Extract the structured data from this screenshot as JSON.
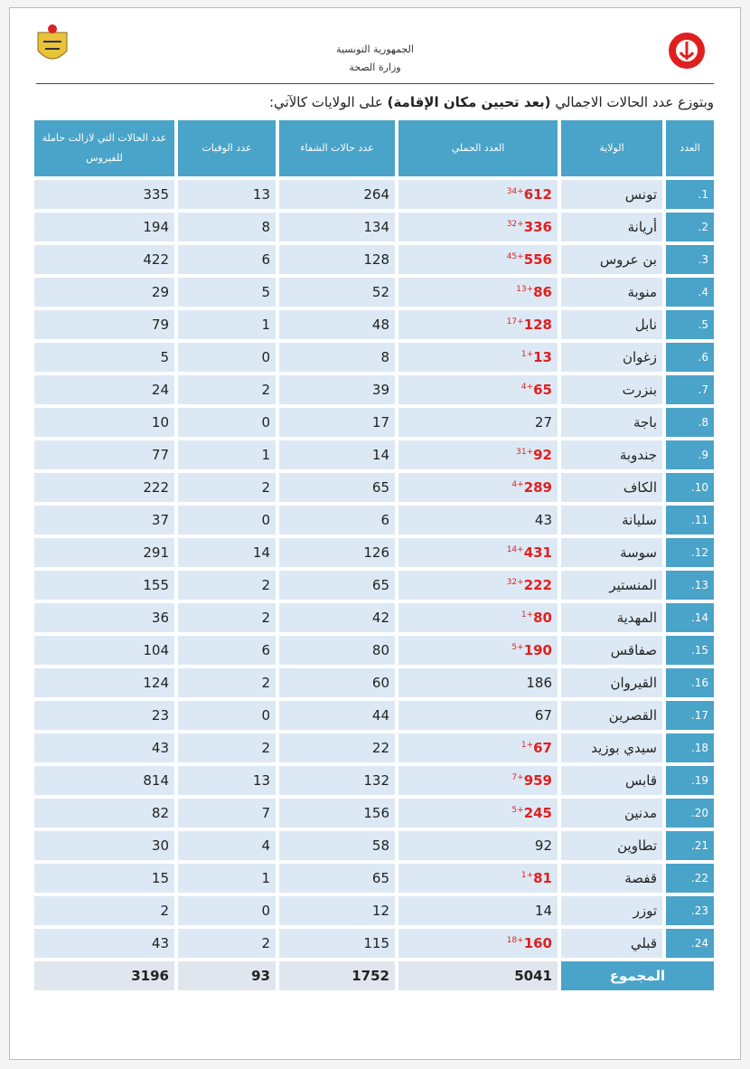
{
  "header": {
    "line1": "الجمهورية التونسية",
    "line2": "وزارة الصحة"
  },
  "intro": {
    "before": "وبتوزع عدد الحالات الاجمالي",
    "bold": "(بعد تحيين مكان الإقامة)",
    "after": "على الولايات كالآتي:"
  },
  "table": {
    "columns": [
      "العدد",
      "الولاية",
      "العدد الجملي",
      "عدد حالات الشفاء",
      "عدد الوفيات",
      "عدد الحالات التي لازالت حاملة للفيروس"
    ],
    "rows": [
      {
        "index": "1.",
        "name": "تونس",
        "total": 612,
        "new": "34+",
        "recovered": 264,
        "deaths": 13,
        "active": 335
      },
      {
        "index": "2.",
        "name": "أريانة",
        "total": 336,
        "new": "32+",
        "recovered": 134,
        "deaths": 8,
        "active": 194
      },
      {
        "index": "3.",
        "name": "بن عروس",
        "total": 556,
        "new": "45+",
        "recovered": 128,
        "deaths": 6,
        "active": 422
      },
      {
        "index": "4.",
        "name": "منوبة",
        "total": 86,
        "new": "13+",
        "recovered": 52,
        "deaths": 5,
        "active": 29
      },
      {
        "index": "5.",
        "name": "نابل",
        "total": 128,
        "new": "17+",
        "recovered": 48,
        "deaths": 1,
        "active": 79
      },
      {
        "index": "6.",
        "name": "زغوان",
        "total": 13,
        "new": "1+",
        "recovered": 8,
        "deaths": 0,
        "active": 5
      },
      {
        "index": "7.",
        "name": "بنزرت",
        "total": 65,
        "new": "4+",
        "recovered": 39,
        "deaths": 2,
        "active": 24
      },
      {
        "index": "8.",
        "name": "باجة",
        "total": 27,
        "recovered": 17,
        "deaths": 0,
        "active": 10
      },
      {
        "index": "9.",
        "name": "جندوبة",
        "total": 92,
        "new": "31+",
        "recovered": 14,
        "deaths": 1,
        "active": 77
      },
      {
        "index": "10.",
        "name": "الكاف",
        "total": 289,
        "new": "4+",
        "recovered": 65,
        "deaths": 2,
        "active": 222
      },
      {
        "index": "11.",
        "name": "سليانة",
        "total": 43,
        "recovered": 6,
        "deaths": 0,
        "active": 37
      },
      {
        "index": "12.",
        "name": "سوسة",
        "total": 431,
        "new": "14+",
        "recovered": 126,
        "deaths": 14,
        "active": 291
      },
      {
        "index": "13.",
        "name": "المنستير",
        "total": 222,
        "new": "32+",
        "recovered": 65,
        "deaths": 2,
        "active": 155
      },
      {
        "index": "14.",
        "name": "المهدية",
        "total": 80,
        "new": "1+",
        "recovered": 42,
        "deaths": 2,
        "active": 36
      },
      {
        "index": "15.",
        "name": "صفاقس",
        "total": 190,
        "new": "5+",
        "recovered": 80,
        "deaths": 6,
        "active": 104
      },
      {
        "index": "16.",
        "name": "القيروان",
        "total": 186,
        "recovered": 60,
        "deaths": 2,
        "active": 124
      },
      {
        "index": "17.",
        "name": "القصرين",
        "total": 67,
        "recovered": 44,
        "deaths": 0,
        "active": 23
      },
      {
        "index": "18.",
        "name": "سيدي بوزيد",
        "total": 67,
        "new": "1+",
        "recovered": 22,
        "deaths": 2,
        "active": 43
      },
      {
        "index": "19.",
        "name": "قابس",
        "total": 959,
        "new": "7+",
        "recovered": 132,
        "deaths": 13,
        "active": 814
      },
      {
        "index": "20.",
        "name": "مدنين",
        "total": 245,
        "new": "5+",
        "recovered": 156,
        "deaths": 7,
        "active": 82
      },
      {
        "index": "21.",
        "name": "تطاوين",
        "total": 92,
        "recovered": 58,
        "deaths": 4,
        "active": 30
      },
      {
        "index": "22.",
        "name": "قفصة",
        "total": 81,
        "new": "1+",
        "recovered": 65,
        "deaths": 1,
        "active": 15
      },
      {
        "index": "23.",
        "name": "توزر",
        "total": 14,
        "recovered": 12,
        "deaths": 0,
        "active": 2
      },
      {
        "index": "24.",
        "name": "قبلي",
        "total": 160,
        "new": "18+",
        "recovered": 115,
        "deaths": 2,
        "active": 43
      }
    ],
    "sum": {
      "label": "المجموع",
      "total": 5041,
      "recovered": 1752,
      "deaths": 93,
      "active": 3196
    }
  }
}
